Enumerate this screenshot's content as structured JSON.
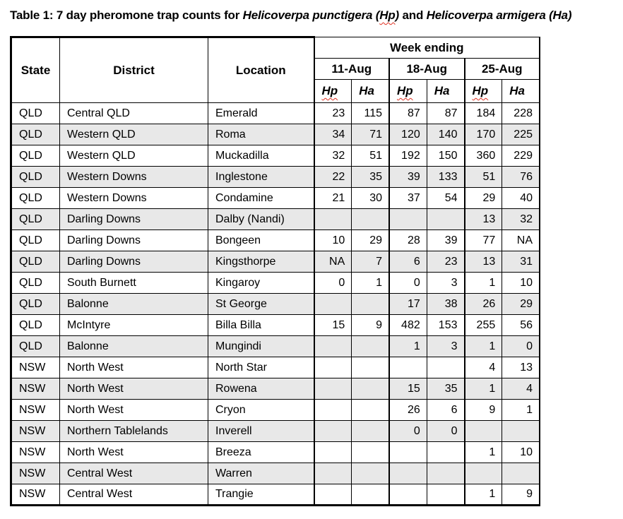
{
  "title": {
    "prefix": "Table 1: 7 day pheromone trap counts for ",
    "species1_name": "Helicoverpa punctigera (",
    "species1_abbr": "Hp",
    "species1_close": ")",
    "connector": " and ",
    "species2_name": "Helicoverpa armigera (Ha)"
  },
  "table": {
    "headers": {
      "state": "State",
      "district": "District",
      "location": "Location",
      "week_ending": "Week ending",
      "weeks": [
        "11-Aug",
        "18-Aug",
        "25-Aug"
      ],
      "species_cols": [
        "Hp",
        "Ha"
      ]
    },
    "rows": [
      {
        "state": "QLD",
        "district": "Central QLD",
        "location": "Emerald",
        "values": [
          "23",
          "115",
          "87",
          "87",
          "184",
          "228"
        ]
      },
      {
        "state": "QLD",
        "district": "Western QLD",
        "location": "Roma",
        "values": [
          "34",
          "71",
          "120",
          "140",
          "170",
          "225"
        ]
      },
      {
        "state": "QLD",
        "district": "Western QLD",
        "location": "Muckadilla",
        "values": [
          "32",
          "51",
          "192",
          "150",
          "360",
          "229"
        ]
      },
      {
        "state": "QLD",
        "district": "Western Downs",
        "location": "Inglestone",
        "values": [
          "22",
          "35",
          "39",
          "133",
          "51",
          "76"
        ]
      },
      {
        "state": "QLD",
        "district": "Western Downs",
        "location": "Condamine",
        "values": [
          "21",
          "30",
          "37",
          "54",
          "29",
          "40"
        ]
      },
      {
        "state": "QLD",
        "district": "Darling Downs",
        "location": "Dalby (Nandi)",
        "values": [
          "",
          "",
          "",
          "",
          "13",
          "32"
        ]
      },
      {
        "state": "QLD",
        "district": "Darling Downs",
        "location": "Bongeen",
        "values": [
          "10",
          "29",
          "28",
          "39",
          "77",
          "NA"
        ]
      },
      {
        "state": "QLD",
        "district": "Darling Downs",
        "location": "Kingsthorpe",
        "values": [
          "NA",
          "7",
          "6",
          "23",
          "13",
          "31"
        ]
      },
      {
        "state": "QLD",
        "district": "South Burnett",
        "location": "Kingaroy",
        "values": [
          "0",
          "1",
          "0",
          "3",
          "1",
          "10"
        ]
      },
      {
        "state": "QLD",
        "district": "Balonne",
        "location": "St George",
        "values": [
          "",
          "",
          "17",
          "38",
          "26",
          "29"
        ]
      },
      {
        "state": "QLD",
        "district": "McIntyre",
        "location": "Billa Billa",
        "values": [
          "15",
          "9",
          "482",
          "153",
          "255",
          "56"
        ]
      },
      {
        "state": "QLD",
        "district": "Balonne",
        "location": "Mungindi",
        "values": [
          "",
          "",
          "1",
          "3",
          "1",
          "0"
        ]
      },
      {
        "state": "NSW",
        "district": "North West",
        "location": "North Star",
        "values": [
          "",
          "",
          "",
          "",
          "4",
          "13"
        ]
      },
      {
        "state": "NSW",
        "district": "North West",
        "location": "Rowena",
        "values": [
          "",
          "",
          "15",
          "35",
          "1",
          "4"
        ]
      },
      {
        "state": "NSW",
        "district": "North West",
        "location": "Cryon",
        "values": [
          "",
          "",
          "26",
          "6",
          "9",
          "1"
        ]
      },
      {
        "state": "NSW",
        "district": "Northern Tablelands",
        "location": "Inverell",
        "values": [
          "",
          "",
          "0",
          "0",
          "",
          ""
        ]
      },
      {
        "state": "NSW",
        "district": "North West",
        "location": "Breeza",
        "values": [
          "",
          "",
          "",
          "",
          "1",
          "10"
        ]
      },
      {
        "state": "NSW",
        "district": "Central West",
        "location": "Warren",
        "values": [
          "",
          "",
          "",
          "",
          "",
          ""
        ]
      },
      {
        "state": "NSW",
        "district": "Central West",
        "location": "Trangie",
        "values": [
          "",
          "",
          "",
          "",
          "1",
          "9"
        ]
      }
    ]
  },
  "colors": {
    "stripe": "#e8e8e8",
    "border": "#000000",
    "spellcheck_underline": "#e03020"
  }
}
